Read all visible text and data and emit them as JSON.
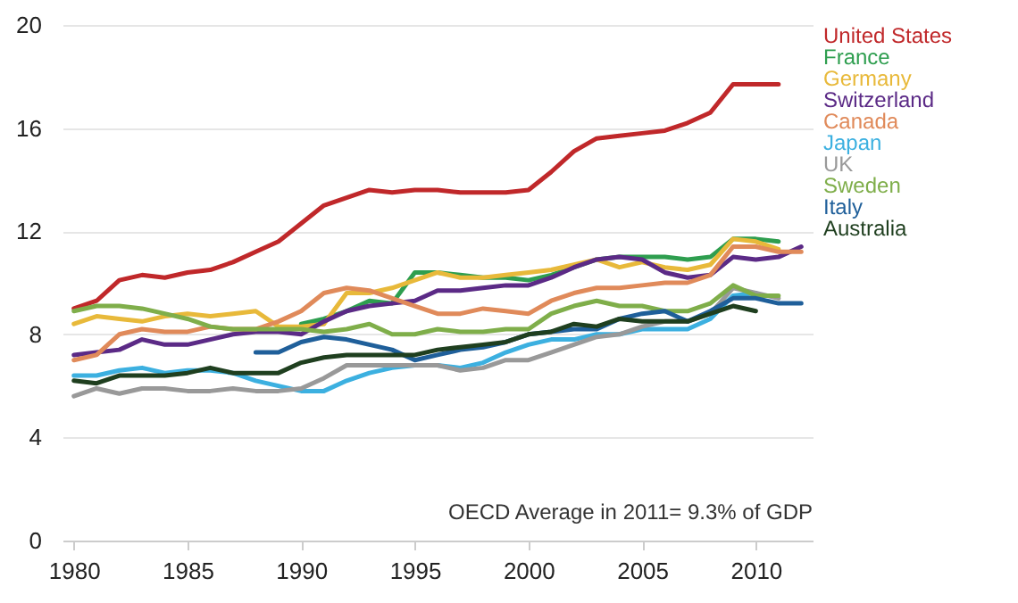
{
  "chart_data": {
    "type": "line",
    "x": [
      1980,
      1981,
      1982,
      1983,
      1984,
      1985,
      1986,
      1987,
      1988,
      1989,
      1990,
      1991,
      1992,
      1993,
      1994,
      1995,
      1996,
      1997,
      1998,
      1999,
      2000,
      2001,
      2002,
      2003,
      2004,
      2005,
      2006,
      2007,
      2008,
      2009,
      2010,
      2011,
      2012
    ],
    "series": [
      {
        "name": "United States",
        "color": "#c0282a",
        "values": [
          9.0,
          9.3,
          10.1,
          10.3,
          10.2,
          10.4,
          10.5,
          10.8,
          11.2,
          11.6,
          12.3,
          13.0,
          13.3,
          13.6,
          13.5,
          13.6,
          13.6,
          13.5,
          13.5,
          13.5,
          13.6,
          14.3,
          15.1,
          15.6,
          15.7,
          15.8,
          15.9,
          16.2,
          16.6,
          17.7,
          17.7,
          17.7,
          null
        ]
      },
      {
        "name": "France",
        "color": "#2e9e4f",
        "values": [
          null,
          null,
          null,
          null,
          null,
          null,
          null,
          null,
          null,
          null,
          8.4,
          8.6,
          8.9,
          9.3,
          9.2,
          10.4,
          10.4,
          10.3,
          10.2,
          10.2,
          10.1,
          10.3,
          10.6,
          10.9,
          11.0,
          11.0,
          11.0,
          10.9,
          11.0,
          11.7,
          11.7,
          11.6,
          null
        ]
      },
      {
        "name": "Germany",
        "color": "#e8b93a",
        "values": [
          8.4,
          8.7,
          8.6,
          8.5,
          8.7,
          8.8,
          8.7,
          8.8,
          8.9,
          8.3,
          8.3,
          8.4,
          9.6,
          9.6,
          9.8,
          10.1,
          10.4,
          10.2,
          10.2,
          10.3,
          10.4,
          10.5,
          10.7,
          10.9,
          10.6,
          10.8,
          10.6,
          10.5,
          10.7,
          11.7,
          11.6,
          11.3,
          null
        ]
      },
      {
        "name": "Switzerland",
        "color": "#5b2a86",
        "values": [
          7.2,
          7.3,
          7.4,
          7.8,
          7.6,
          7.6,
          7.8,
          8.0,
          8.1,
          8.1,
          8.0,
          8.5,
          8.9,
          9.1,
          9.2,
          9.3,
          9.7,
          9.7,
          9.8,
          9.9,
          9.9,
          10.2,
          10.6,
          10.9,
          11.0,
          10.9,
          10.4,
          10.2,
          10.3,
          11.0,
          10.9,
          11.0,
          11.4
        ]
      },
      {
        "name": "Canada",
        "color": "#e08a5a",
        "values": [
          7.0,
          7.2,
          8.0,
          8.2,
          8.1,
          8.1,
          8.3,
          8.2,
          8.2,
          8.5,
          8.9,
          9.6,
          9.8,
          9.7,
          9.4,
          9.1,
          8.8,
          8.8,
          9.0,
          8.9,
          8.8,
          9.3,
          9.6,
          9.8,
          9.8,
          9.9,
          10.0,
          10.0,
          10.3,
          11.4,
          11.4,
          11.2,
          11.2
        ]
      },
      {
        "name": "Japan",
        "color": "#3cb0e0",
        "values": [
          6.4,
          6.4,
          6.6,
          6.7,
          6.5,
          6.6,
          6.6,
          6.5,
          6.2,
          6.0,
          5.8,
          5.8,
          6.2,
          6.5,
          6.7,
          6.8,
          6.8,
          6.7,
          6.9,
          7.3,
          7.6,
          7.8,
          7.8,
          8.0,
          8.0,
          8.2,
          8.2,
          8.2,
          8.6,
          9.5,
          9.6,
          null,
          null
        ]
      },
      {
        "name": "UK",
        "color": "#999999",
        "values": [
          5.6,
          5.9,
          5.7,
          5.9,
          5.9,
          5.8,
          5.8,
          5.9,
          5.8,
          5.8,
          5.9,
          6.3,
          6.8,
          6.8,
          6.8,
          6.8,
          6.8,
          6.6,
          6.7,
          7.0,
          7.0,
          7.3,
          7.6,
          7.9,
          8.0,
          8.3,
          8.5,
          8.5,
          8.8,
          9.8,
          9.6,
          9.4,
          null
        ]
      },
      {
        "name": "Sweden",
        "color": "#7fae4a",
        "values": [
          8.9,
          9.1,
          9.1,
          9.0,
          8.8,
          8.6,
          8.3,
          8.2,
          8.2,
          8.2,
          8.2,
          8.1,
          8.2,
          8.4,
          8.0,
          8.0,
          8.2,
          8.1,
          8.1,
          8.2,
          8.2,
          8.8,
          9.1,
          9.3,
          9.1,
          9.1,
          8.9,
          8.9,
          9.2,
          9.9,
          9.5,
          9.5,
          null
        ]
      },
      {
        "name": "Italy",
        "color": "#1f5f9a",
        "values": [
          null,
          null,
          null,
          null,
          null,
          null,
          null,
          null,
          7.3,
          7.3,
          7.7,
          7.9,
          7.8,
          7.6,
          7.4,
          7.0,
          7.2,
          7.4,
          7.5,
          7.7,
          8.0,
          8.1,
          8.2,
          8.2,
          8.6,
          8.8,
          8.9,
          8.5,
          8.9,
          9.4,
          9.4,
          9.2,
          9.2
        ]
      },
      {
        "name": "Australia",
        "color": "#1f3f1f",
        "values": [
          6.2,
          6.1,
          6.4,
          6.4,
          6.4,
          6.5,
          6.7,
          6.5,
          6.5,
          6.5,
          6.9,
          7.1,
          7.2,
          7.2,
          7.2,
          7.2,
          7.4,
          7.5,
          7.6,
          7.7,
          8.0,
          8.1,
          8.4,
          8.3,
          8.6,
          8.5,
          8.5,
          8.5,
          8.8,
          9.1,
          8.9,
          null,
          null
        ]
      }
    ],
    "xlim": [
      1979.5,
      2012.5
    ],
    "xticks": [
      1980,
      1985,
      1990,
      1995,
      2000,
      2005,
      2010
    ],
    "ylim": [
      0,
      20
    ],
    "yticks": [
      0,
      4,
      8,
      12,
      16,
      20
    ],
    "grid": "y",
    "legend": "right",
    "line_style": "solid",
    "annotations": [
      "OECD Average in 2011= 9.3% of GDP"
    ]
  }
}
